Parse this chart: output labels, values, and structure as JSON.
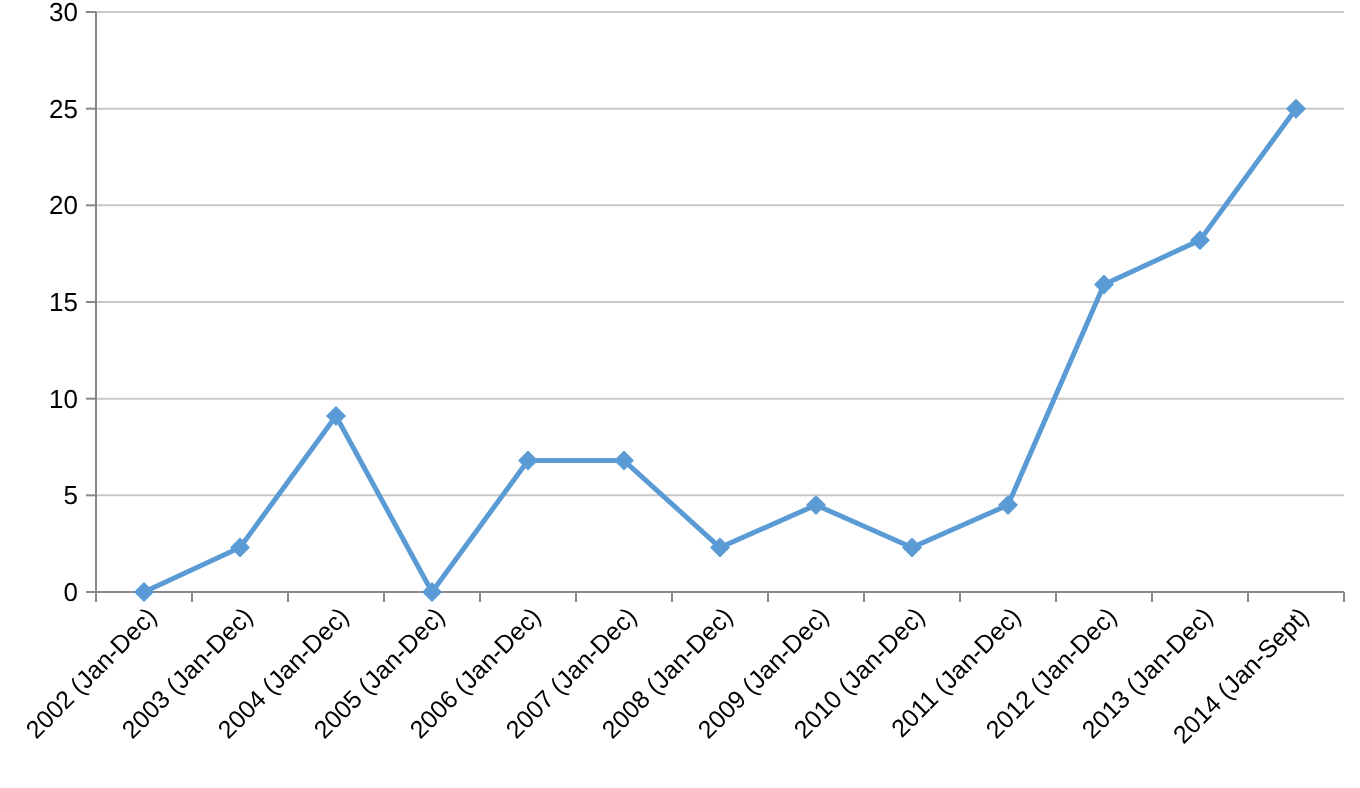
{
  "chart_data": {
    "type": "line",
    "categories": [
      "2002 (Jan-Dec)",
      "2003 (Jan-Dec)",
      "2004 (Jan-Dec)",
      "2005 (Jan-Dec)",
      "2006 (Jan-Dec)",
      "2007 (Jan-Dec)",
      "2008 (Jan-Dec)",
      "2009 (Jan-Dec)",
      "2010 (Jan-Dec)",
      "2011 (Jan-Dec)",
      "2012 (Jan-Dec)",
      "2013 (Jan-Dec)",
      "2014 (Jan-Sept)"
    ],
    "series": [
      {
        "color": "#5b9bd5",
        "values": [
          0,
          2.3,
          9.1,
          0,
          6.8,
          6.8,
          2.3,
          4.5,
          2.3,
          4.5,
          15.9,
          18.2,
          25.0
        ]
      }
    ],
    "ylim": [
      0,
      30
    ],
    "yticks": [
      0,
      5,
      10,
      15,
      20,
      25,
      30
    ],
    "grid": "y",
    "marker": "diamond",
    "line_style": "solid"
  }
}
